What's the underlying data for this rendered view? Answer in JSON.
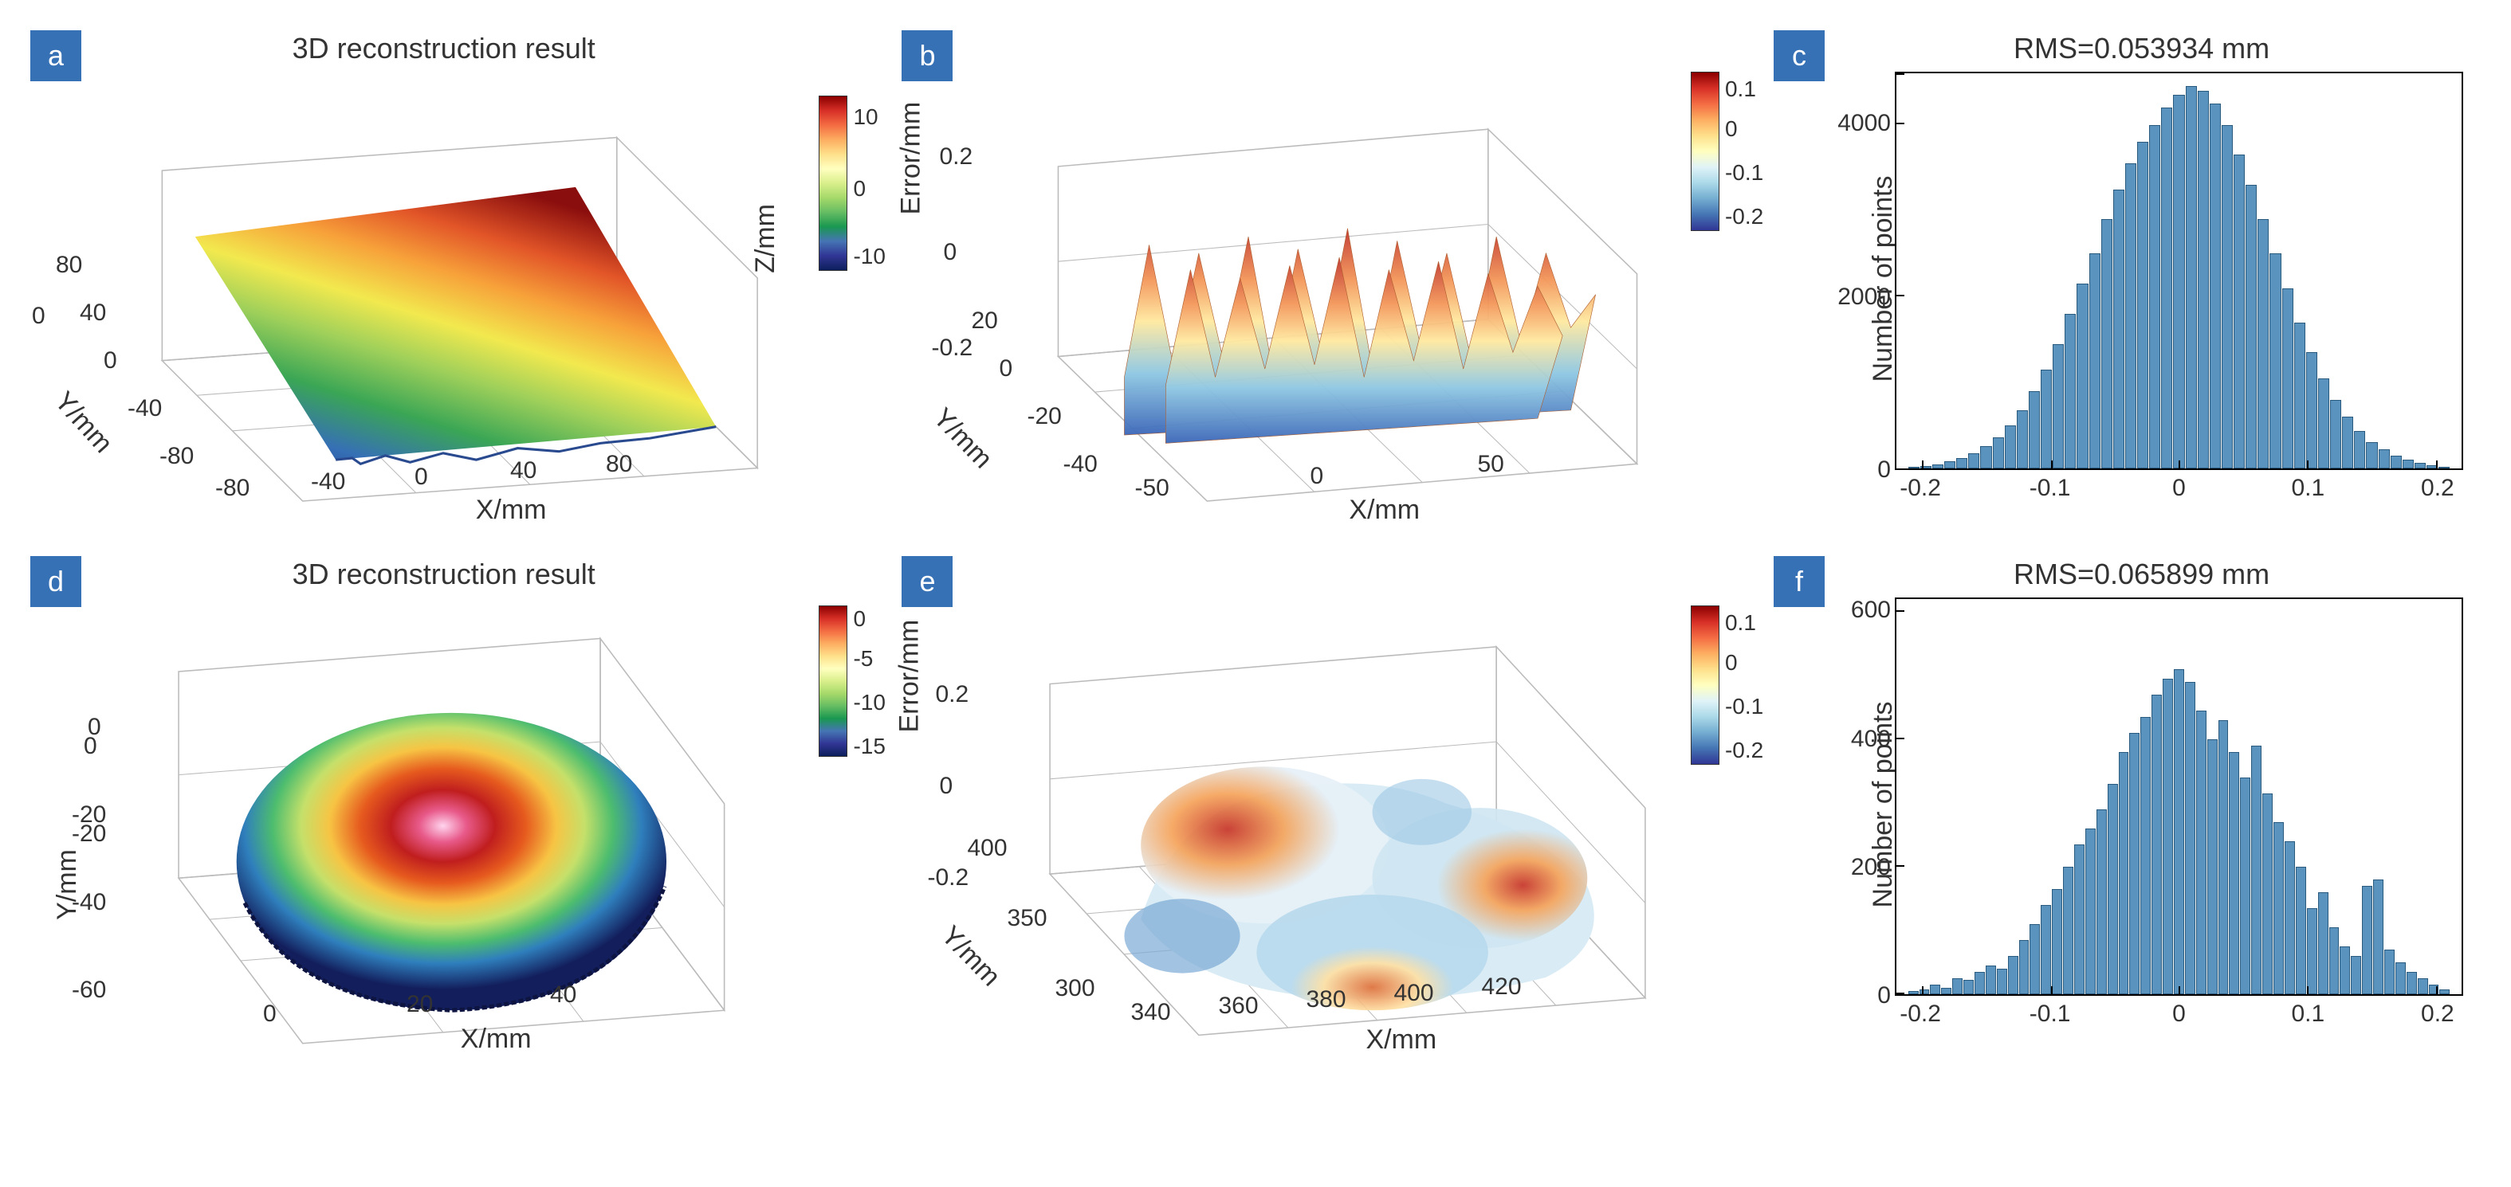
{
  "panels": {
    "a": {
      "label": "a",
      "title": "3D reconstruction result",
      "type": "surface3d",
      "x_label": "X/mm",
      "y_label": "Y/mm",
      "z_label": "Z/mm",
      "x_ticks": [
        -80,
        -40,
        0,
        40,
        80
      ],
      "y_ticks": [
        -80,
        -40,
        0,
        40,
        80
      ],
      "z_ticks": [
        0
      ],
      "colorbar_ticks": [
        10,
        0,
        -10
      ],
      "colorbar_range": [
        -15,
        15
      ],
      "background_color": "#ffffff",
      "grid_color": "#cccccc",
      "colormap": [
        "#0d1f5c",
        "#313695",
        "#4575b4",
        "#1a9850",
        "#66bd63",
        "#a6d96a",
        "#d9ef8b",
        "#fee08b",
        "#fdae61",
        "#f46d43",
        "#d73027",
        "#8b0000"
      ]
    },
    "b": {
      "label": "b",
      "title": "",
      "type": "surface3d",
      "x_label": "X/mm",
      "y_label": "Y/mm",
      "z_label": "Error/mm",
      "x_ticks": [
        -50,
        0,
        50
      ],
      "y_ticks": [
        -40,
        -20,
        0,
        20
      ],
      "z_ticks": [
        -0.2,
        0,
        0.2
      ],
      "colorbar_ticks": [
        0.1,
        0.0,
        -0.1,
        -0.2
      ],
      "colorbar_range": [
        -0.25,
        0.15
      ],
      "background_color": "#ffffff",
      "grid_color": "#cccccc",
      "colormap": [
        "#313695",
        "#4575b4",
        "#74add1",
        "#abd9e9",
        "#e0f3f8",
        "#ffffbf",
        "#fee08b",
        "#fdae61",
        "#f46d43",
        "#d73027",
        "#8b0000"
      ]
    },
    "c": {
      "label": "c",
      "title": "RMS=0.053934 mm",
      "type": "histogram",
      "y_label": "Number of points",
      "x_ticks": [
        -0.2,
        -0.1,
        0,
        0.1,
        0.2
      ],
      "y_ticks": [
        0,
        2000,
        4000
      ],
      "ylim": [
        0,
        4600
      ],
      "xlim": [
        -0.22,
        0.22
      ],
      "bar_color": "#5a93bd",
      "bar_edge_color": "#2a5a7d",
      "background_color": "#ffffff",
      "bin_heights": [
        20,
        30,
        50,
        80,
        120,
        180,
        260,
        360,
        500,
        680,
        900,
        1150,
        1450,
        1800,
        2150,
        2500,
        2900,
        3250,
        3550,
        3800,
        4000,
        4200,
        4350,
        4450,
        4400,
        4250,
        4000,
        3650,
        3300,
        2900,
        2500,
        2100,
        1700,
        1350,
        1050,
        800,
        600,
        440,
        310,
        220,
        150,
        100,
        65,
        40,
        20
      ]
    },
    "d": {
      "label": "d",
      "title": "3D reconstruction result",
      "type": "surface3d",
      "x_label": "X/mm",
      "y_label": "Y/mm",
      "z_label": "",
      "x_ticks": [
        0,
        20,
        40
      ],
      "y_ticks": [
        -60,
        -40,
        -20,
        0
      ],
      "z_ticks": [
        -20,
        0
      ],
      "colorbar_ticks": [
        0,
        -5,
        -10,
        -15
      ],
      "colorbar_range": [
        -17,
        1
      ],
      "background_color": "#ffffff",
      "grid_color": "#cccccc",
      "colormap": [
        "#0d1f5c",
        "#313695",
        "#4575b4",
        "#1a9850",
        "#66bd63",
        "#a6d96a",
        "#d9ef8b",
        "#fee08b",
        "#fdae61",
        "#f46d43",
        "#d73027",
        "#e85a8a",
        "#ffc0e8"
      ]
    },
    "e": {
      "label": "e",
      "title": "",
      "type": "surface3d",
      "x_label": "X/mm",
      "y_label": "Y/mm",
      "z_label": "Error/mm",
      "x_ticks": [
        340,
        360,
        380,
        400,
        420
      ],
      "y_ticks": [
        300,
        350,
        400
      ],
      "z_ticks": [
        -0.2,
        0.0,
        0.2
      ],
      "colorbar_ticks": [
        0.1,
        0.0,
        -0.1,
        -0.2
      ],
      "colorbar_range": [
        -0.25,
        0.15
      ],
      "background_color": "#ffffff",
      "grid_color": "#cccccc",
      "colormap": [
        "#313695",
        "#4575b4",
        "#74add1",
        "#abd9e9",
        "#e0f3f8",
        "#ffffbf",
        "#fee08b",
        "#fdae61",
        "#f46d43",
        "#d73027",
        "#8b0000"
      ]
    },
    "f": {
      "label": "f",
      "title": "RMS=0.065899 mm",
      "type": "histogram",
      "y_label": "Number of points",
      "x_ticks": [
        -0.2,
        -0.1,
        0,
        0.1,
        0.2
      ],
      "y_ticks": [
        0,
        200,
        400,
        600
      ],
      "ylim": [
        0,
        620
      ],
      "xlim": [
        -0.22,
        0.22
      ],
      "bar_color": "#5a93bd",
      "bar_edge_color": "#2a5a7d",
      "background_color": "#ffffff",
      "bin_heights": [
        5,
        8,
        15,
        10,
        25,
        22,
        35,
        45,
        40,
        60,
        85,
        110,
        140,
        165,
        200,
        235,
        260,
        290,
        330,
        380,
        410,
        435,
        470,
        495,
        510,
        490,
        445,
        400,
        430,
        380,
        340,
        390,
        315,
        270,
        240,
        200,
        135,
        160,
        105,
        75,
        60,
        170,
        180,
        70,
        50,
        35,
        25,
        15,
        8
      ]
    }
  },
  "label_box_color": "#3670b5",
  "label_text_color": "#ffffff",
  "global_font_size": 34,
  "tick_font_size": 30
}
